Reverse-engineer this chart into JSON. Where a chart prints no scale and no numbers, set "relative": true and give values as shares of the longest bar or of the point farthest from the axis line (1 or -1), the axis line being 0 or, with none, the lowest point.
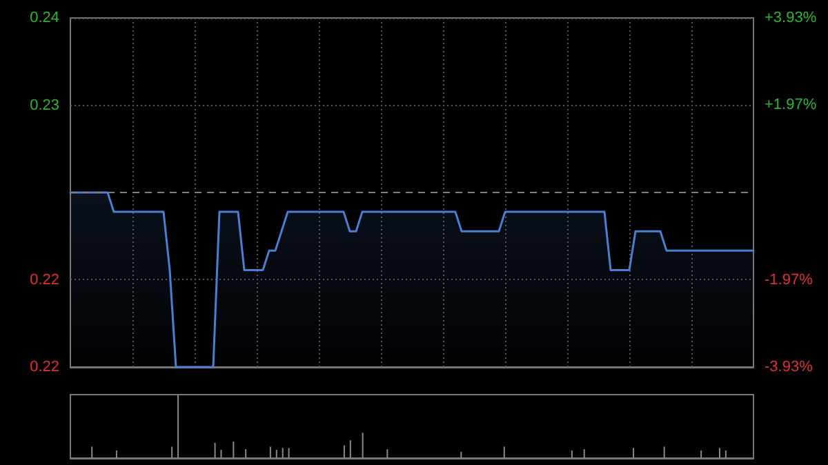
{
  "chart_data": [
    {
      "type": "area",
      "categories": [
        null,
        null,
        null,
        null,
        null,
        null,
        null,
        null,
        null,
        null,
        null,
        null,
        null,
        null,
        null,
        null,
        null,
        null,
        null,
        null,
        null,
        null,
        null,
        null,
        null,
        null,
        null,
        null,
        null,
        null,
        null,
        null,
        null,
        null,
        null,
        null,
        null,
        null,
        null,
        null,
        null,
        null,
        null,
        null,
        null,
        null,
        null,
        null,
        null,
        null,
        null,
        null,
        null,
        null,
        null,
        null,
        null,
        null,
        null,
        null,
        null,
        null,
        null,
        null,
        null,
        null,
        null,
        null,
        null,
        null,
        null,
        null,
        null,
        null,
        null,
        null,
        null,
        null,
        null,
        null,
        null,
        null,
        null,
        null,
        null,
        null,
        null,
        null,
        null,
        null,
        null,
        null,
        null,
        null,
        null,
        null,
        null,
        null,
        null,
        null,
        null,
        null,
        null,
        null,
        null,
        null,
        null,
        null,
        null,
        null,
        null
      ],
      "series": [
        {
          "color": "#4a7fd4",
          "values": [
            0.229,
            0.229,
            0.229,
            0.229,
            0.229,
            0.229,
            0.229,
            0.228,
            0.228,
            0.228,
            0.228,
            0.228,
            0.228,
            0.228,
            0.228,
            0.228,
            0.225,
            0.22,
            0.22,
            0.22,
            0.22,
            0.22,
            0.22,
            0.22,
            0.228,
            0.228,
            0.228,
            0.228,
            0.225,
            0.225,
            0.225,
            0.225,
            0.226,
            0.226,
            0.227,
            0.228,
            0.228,
            0.228,
            0.228,
            0.228,
            0.228,
            0.228,
            0.228,
            0.228,
            0.228,
            0.227,
            0.227,
            0.228,
            0.228,
            0.228,
            0.228,
            0.228,
            0.228,
            0.228,
            0.228,
            0.228,
            0.228,
            0.228,
            0.228,
            0.228,
            0.228,
            0.228,
            0.228,
            0.227,
            0.227,
            0.227,
            0.227,
            0.227,
            0.227,
            0.227,
            0.228,
            0.228,
            0.228,
            0.228,
            0.228,
            0.228,
            0.228,
            0.228,
            0.228,
            0.228,
            0.228,
            0.228,
            0.228,
            0.228,
            0.228,
            0.228,
            0.228,
            0.225,
            0.225,
            0.225,
            0.225,
            0.227,
            0.227,
            0.227,
            0.227,
            0.227,
            0.226,
            0.226,
            0.226,
            0.226,
            0.226,
            0.226,
            0.226,
            0.226,
            0.226,
            0.226,
            0.226,
            0.226,
            0.226,
            0.226,
            0.226
          ]
        }
      ],
      "ylim": [
        0.22,
        0.238
      ],
      "yticks": [
        {
          "value": 0.22,
          "label": "0.22"
        },
        {
          "value": 0.2245,
          "label": "0.22"
        },
        {
          "value": 0.2335,
          "label": "0.23"
        },
        {
          "value": 0.238,
          "label": "0.24"
        }
      ],
      "y2lim": [
        -3.93,
        3.93
      ],
      "y2ticks": [
        {
          "value": -3.93,
          "label": "-3.93%"
        },
        {
          "value": -1.97,
          "label": "-1.97%"
        },
        {
          "value": 1.97,
          "label": "+1.97%"
        },
        {
          "value": 3.93,
          "label": "+3.93%"
        }
      ],
      "ref_lines": [
        {
          "axis": "y",
          "value": 0.229,
          "color": "#808080",
          "line_style": "dashed"
        }
      ],
      "grid": true,
      "tick_labels": "y"
    },
    {
      "type": "bar",
      "categories": [
        null,
        null,
        null,
        null,
        null,
        null,
        null,
        null,
        null,
        null,
        null,
        null,
        null,
        null,
        null,
        null,
        null,
        null,
        null,
        null,
        null,
        null,
        null,
        null,
        null,
        null,
        null,
        null,
        null,
        null,
        null,
        null,
        null,
        null,
        null,
        null,
        null,
        null,
        null,
        null,
        null,
        null,
        null,
        null,
        null,
        null,
        null,
        null,
        null,
        null,
        null,
        null,
        null,
        null,
        null,
        null,
        null,
        null,
        null,
        null,
        null,
        null,
        null,
        null,
        null,
        null,
        null,
        null,
        null,
        null,
        null,
        null,
        null,
        null,
        null,
        null,
        null,
        null,
        null,
        null,
        null,
        null,
        null,
        null,
        null,
        null,
        null,
        null,
        null,
        null,
        null,
        null,
        null,
        null,
        null,
        null,
        null,
        null,
        null,
        null,
        null,
        null,
        null,
        null,
        null,
        null,
        null,
        null,
        null,
        null,
        null
      ],
      "color": "#8a8a8a",
      "values": [
        0,
        0,
        0,
        0.18,
        0,
        0,
        0,
        0.12,
        0,
        0,
        0,
        0,
        0,
        0,
        0,
        0,
        0.18,
        1,
        0,
        0,
        0,
        0,
        0,
        0.24,
        0.13,
        0,
        0.26,
        0,
        0.14,
        0,
        0,
        0,
        0.18,
        0.13,
        0.16,
        0.16,
        0,
        0,
        0,
        0,
        0,
        0,
        0,
        0,
        0.2,
        0.28,
        0,
        0.4,
        0,
        0,
        0,
        0.14,
        0,
        0,
        0,
        0,
        0,
        0,
        0,
        0,
        0,
        0,
        0,
        0.1,
        0,
        0,
        0,
        0,
        0,
        0,
        0.18,
        0,
        0,
        0,
        0,
        0,
        0,
        0,
        0,
        0,
        0,
        0.12,
        0,
        0.14,
        0,
        0,
        0,
        0,
        0,
        0,
        0,
        0.16,
        0,
        0,
        0,
        0,
        0.18,
        0,
        0,
        0,
        0,
        0,
        0.12,
        0,
        0,
        0.16,
        0.12,
        0,
        0,
        0,
        0
      ],
      "relative": true,
      "tick_labels": false
    }
  ]
}
